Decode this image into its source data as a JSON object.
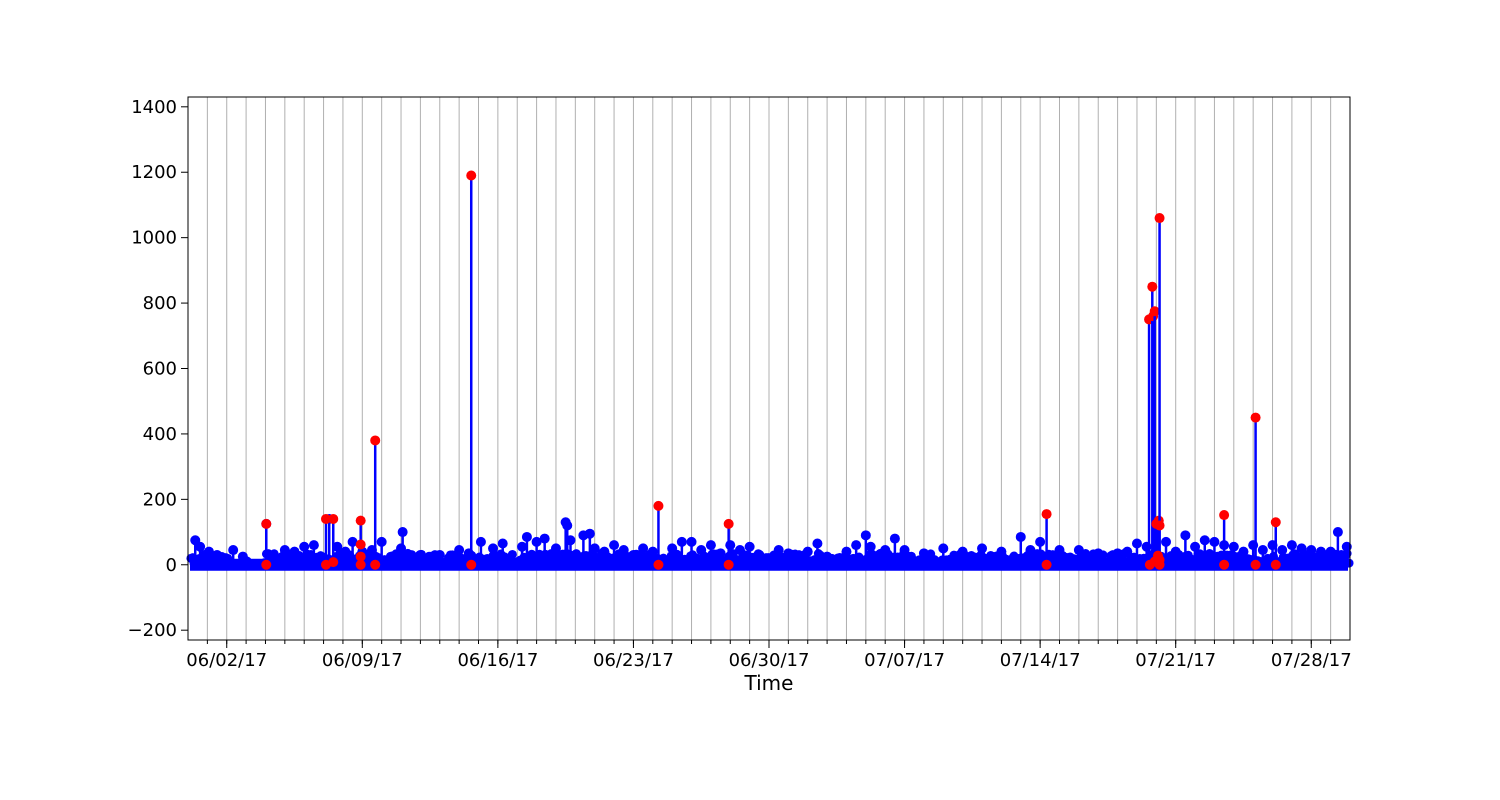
{
  "chart_data": {
    "type": "scatter",
    "title": "",
    "xlabel": "Time",
    "ylabel": "",
    "x_range": [
      "2017-05-31",
      "2017-07-30"
    ],
    "ylim": [
      -230,
      1430
    ],
    "yticks": [
      -200,
      0,
      200,
      400,
      600,
      800,
      1000,
      1200,
      1400
    ],
    "xticks": [
      {
        "date": "2017-06-02",
        "label": "06/02/17"
      },
      {
        "date": "2017-06-09",
        "label": "06/09/17"
      },
      {
        "date": "2017-06-16",
        "label": "06/16/17"
      },
      {
        "date": "2017-06-23",
        "label": "06/23/17"
      },
      {
        "date": "2017-06-30",
        "label": "06/30/17"
      },
      {
        "date": "2017-07-07",
        "label": "07/07/17"
      },
      {
        "date": "2017-07-14",
        "label": "07/14/17"
      },
      {
        "date": "2017-07-21",
        "label": "07/21/17"
      },
      {
        "date": "2017-07-28",
        "label": "07/28/17"
      }
    ],
    "grid": "vertical",
    "legend": "none",
    "series": [
      {
        "color": "#0000ff",
        "marker": "circle",
        "stems": true,
        "points": [
          [
            "2017-05-31T09:00",
            75
          ],
          [
            "2017-05-31T15:00",
            55
          ],
          [
            "2017-06-01T02:00",
            40
          ],
          [
            "2017-06-01T12:00",
            30
          ],
          [
            "2017-06-02T08:00",
            45
          ],
          [
            "2017-06-02T20:00",
            25
          ],
          [
            "2017-06-03T01:00",
            10
          ],
          [
            "2017-06-04T01:00",
            125
          ],
          [
            "2017-06-04T12:00",
            20
          ],
          [
            "2017-06-05T00:00",
            45
          ],
          [
            "2017-06-05T12:00",
            40
          ],
          [
            "2017-06-06T00:00",
            55
          ],
          [
            "2017-06-06T12:00",
            60
          ],
          [
            "2017-06-07T07:00",
            140
          ],
          [
            "2017-06-07T17:00",
            55
          ],
          [
            "2017-06-08T03:00",
            40
          ],
          [
            "2017-06-08T12:00",
            70
          ],
          [
            "2017-06-09T00:00",
            40
          ],
          [
            "2017-06-09T12:00",
            45
          ],
          [
            "2017-06-10T00:00",
            70
          ],
          [
            "2017-06-11T00:00",
            50
          ],
          [
            "2017-06-11T02:00",
            100
          ],
          [
            "2017-06-12T00:00",
            30
          ],
          [
            "2017-06-13T00:00",
            30
          ],
          [
            "2017-06-14T00:00",
            45
          ],
          [
            "2017-06-14T12:00",
            35
          ],
          [
            "2017-06-15T03:00",
            70
          ],
          [
            "2017-06-15T18:00",
            50
          ],
          [
            "2017-06-16T06:00",
            65
          ],
          [
            "2017-06-17T06:00",
            55
          ],
          [
            "2017-06-17T12:00",
            85
          ],
          [
            "2017-06-18T00:00",
            70
          ],
          [
            "2017-06-18T10:00",
            80
          ],
          [
            "2017-06-19T00:00",
            50
          ],
          [
            "2017-06-19T12:00",
            130
          ],
          [
            "2017-06-19T14:00",
            120
          ],
          [
            "2017-06-19T18:00",
            75
          ],
          [
            "2017-06-20T10:00",
            90
          ],
          [
            "2017-06-20T18:00",
            95
          ],
          [
            "2017-06-21T00:00",
            50
          ],
          [
            "2017-06-21T12:00",
            40
          ],
          [
            "2017-06-22T00:00",
            60
          ],
          [
            "2017-06-22T12:00",
            45
          ],
          [
            "2017-06-23T00:00",
            30
          ],
          [
            "2017-06-23T12:00",
            50
          ],
          [
            "2017-06-24T00:00",
            40
          ],
          [
            "2017-06-25T00:00",
            50
          ],
          [
            "2017-06-25T12:00",
            70
          ],
          [
            "2017-06-26T00:00",
            70
          ],
          [
            "2017-06-26T12:00",
            45
          ],
          [
            "2017-06-27T00:00",
            60
          ],
          [
            "2017-06-27T12:00",
            35
          ],
          [
            "2017-06-28T00:00",
            60
          ],
          [
            "2017-06-28T12:00",
            45
          ],
          [
            "2017-06-29T00:00",
            55
          ],
          [
            "2017-06-29T12:00",
            30
          ],
          [
            "2017-06-30T00:00",
            20
          ],
          [
            "2017-06-30T12:00",
            45
          ],
          [
            "2017-07-01T00:00",
            35
          ],
          [
            "2017-07-02T00:00",
            40
          ],
          [
            "2017-07-02T12:00",
            65
          ],
          [
            "2017-07-03T00:00",
            25
          ],
          [
            "2017-07-04T00:00",
            40
          ],
          [
            "2017-07-04T12:00",
            60
          ],
          [
            "2017-07-05T00:00",
            90
          ],
          [
            "2017-07-05T06:00",
            55
          ],
          [
            "2017-07-06T00:00",
            45
          ],
          [
            "2017-07-06T12:00",
            80
          ],
          [
            "2017-07-07T00:00",
            45
          ],
          [
            "2017-07-08T00:00",
            35
          ],
          [
            "2017-07-09T00:00",
            50
          ],
          [
            "2017-07-10T00:00",
            40
          ],
          [
            "2017-07-11T00:00",
            50
          ],
          [
            "2017-07-12T00:00",
            40
          ],
          [
            "2017-07-13T00:00",
            85
          ],
          [
            "2017-07-13T12:00",
            45
          ],
          [
            "2017-07-14T00:00",
            70
          ],
          [
            "2017-07-15T00:00",
            45
          ],
          [
            "2017-07-16T00:00",
            45
          ],
          [
            "2017-07-17T00:00",
            35
          ],
          [
            "2017-07-18T00:00",
            35
          ],
          [
            "2017-07-18T12:00",
            40
          ],
          [
            "2017-07-19T00:00",
            65
          ],
          [
            "2017-07-19T12:00",
            55
          ],
          [
            "2017-07-20T12:00",
            70
          ],
          [
            "2017-07-21T00:00",
            40
          ],
          [
            "2017-07-21T12:00",
            90
          ],
          [
            "2017-07-22T00:00",
            55
          ],
          [
            "2017-07-22T12:00",
            75
          ],
          [
            "2017-07-23T00:00",
            70
          ],
          [
            "2017-07-23T12:00",
            60
          ],
          [
            "2017-07-24T00:00",
            55
          ],
          [
            "2017-07-24T12:00",
            40
          ],
          [
            "2017-07-25T00:00",
            60
          ],
          [
            "2017-07-25T12:00",
            45
          ],
          [
            "2017-07-26T00:00",
            60
          ],
          [
            "2017-07-26T12:00",
            45
          ],
          [
            "2017-07-27T00:00",
            60
          ],
          [
            "2017-07-27T12:00",
            50
          ],
          [
            "2017-07-28T00:00",
            45
          ],
          [
            "2017-07-28T12:00",
            40
          ],
          [
            "2017-07-29T00:00",
            40
          ],
          [
            "2017-07-29T09:00",
            100
          ],
          [
            "2017-07-29T20:00",
            55
          ]
        ]
      },
      {
        "color": "#ff0000",
        "marker": "circle",
        "stems": true,
        "points": [
          [
            "2017-06-04T01:00",
            125
          ],
          [
            "2017-06-04T01:00",
            0
          ],
          [
            "2017-06-07T03:00",
            140
          ],
          [
            "2017-06-07T03:00",
            0
          ],
          [
            "2017-06-07T12:00",
            140
          ],
          [
            "2017-06-07T12:00",
            8
          ],
          [
            "2017-06-08T22:00",
            135
          ],
          [
            "2017-06-08T22:00",
            62
          ],
          [
            "2017-06-08T22:00",
            25
          ],
          [
            "2017-06-08T22:00",
            0
          ],
          [
            "2017-06-09T16:00",
            380
          ],
          [
            "2017-06-09T16:00",
            0
          ],
          [
            "2017-06-14T15:00",
            1190
          ],
          [
            "2017-06-14T15:00",
            0
          ],
          [
            "2017-06-24T07:00",
            180
          ],
          [
            "2017-06-24T07:00",
            0
          ],
          [
            "2017-06-27T22:00",
            125
          ],
          [
            "2017-06-27T22:00",
            0
          ],
          [
            "2017-07-14T08:00",
            155
          ],
          [
            "2017-07-14T08:00",
            0
          ],
          [
            "2017-07-19T15:00",
            750
          ],
          [
            "2017-07-19T16:00",
            0
          ],
          [
            "2017-07-19T19:00",
            850
          ],
          [
            "2017-07-19T20:00",
            760
          ],
          [
            "2017-07-19T22:00",
            775
          ],
          [
            "2017-07-19T22:00",
            10
          ],
          [
            "2017-07-20T00:00",
            125
          ],
          [
            "2017-07-20T03:00",
            135
          ],
          [
            "2017-07-20T04:00",
            1060
          ],
          [
            "2017-07-20T04:00",
            120
          ],
          [
            "2017-07-20T02:00",
            28
          ],
          [
            "2017-07-20T04:00",
            15
          ],
          [
            "2017-07-20T04:00",
            0
          ],
          [
            "2017-07-23T12:00",
            152
          ],
          [
            "2017-07-23T12:00",
            0
          ],
          [
            "2017-07-25T03:00",
            450
          ],
          [
            "2017-07-25T03:00",
            0
          ],
          [
            "2017-07-26T04:00",
            130
          ],
          [
            "2017-07-26T04:00",
            0
          ]
        ]
      }
    ]
  }
}
